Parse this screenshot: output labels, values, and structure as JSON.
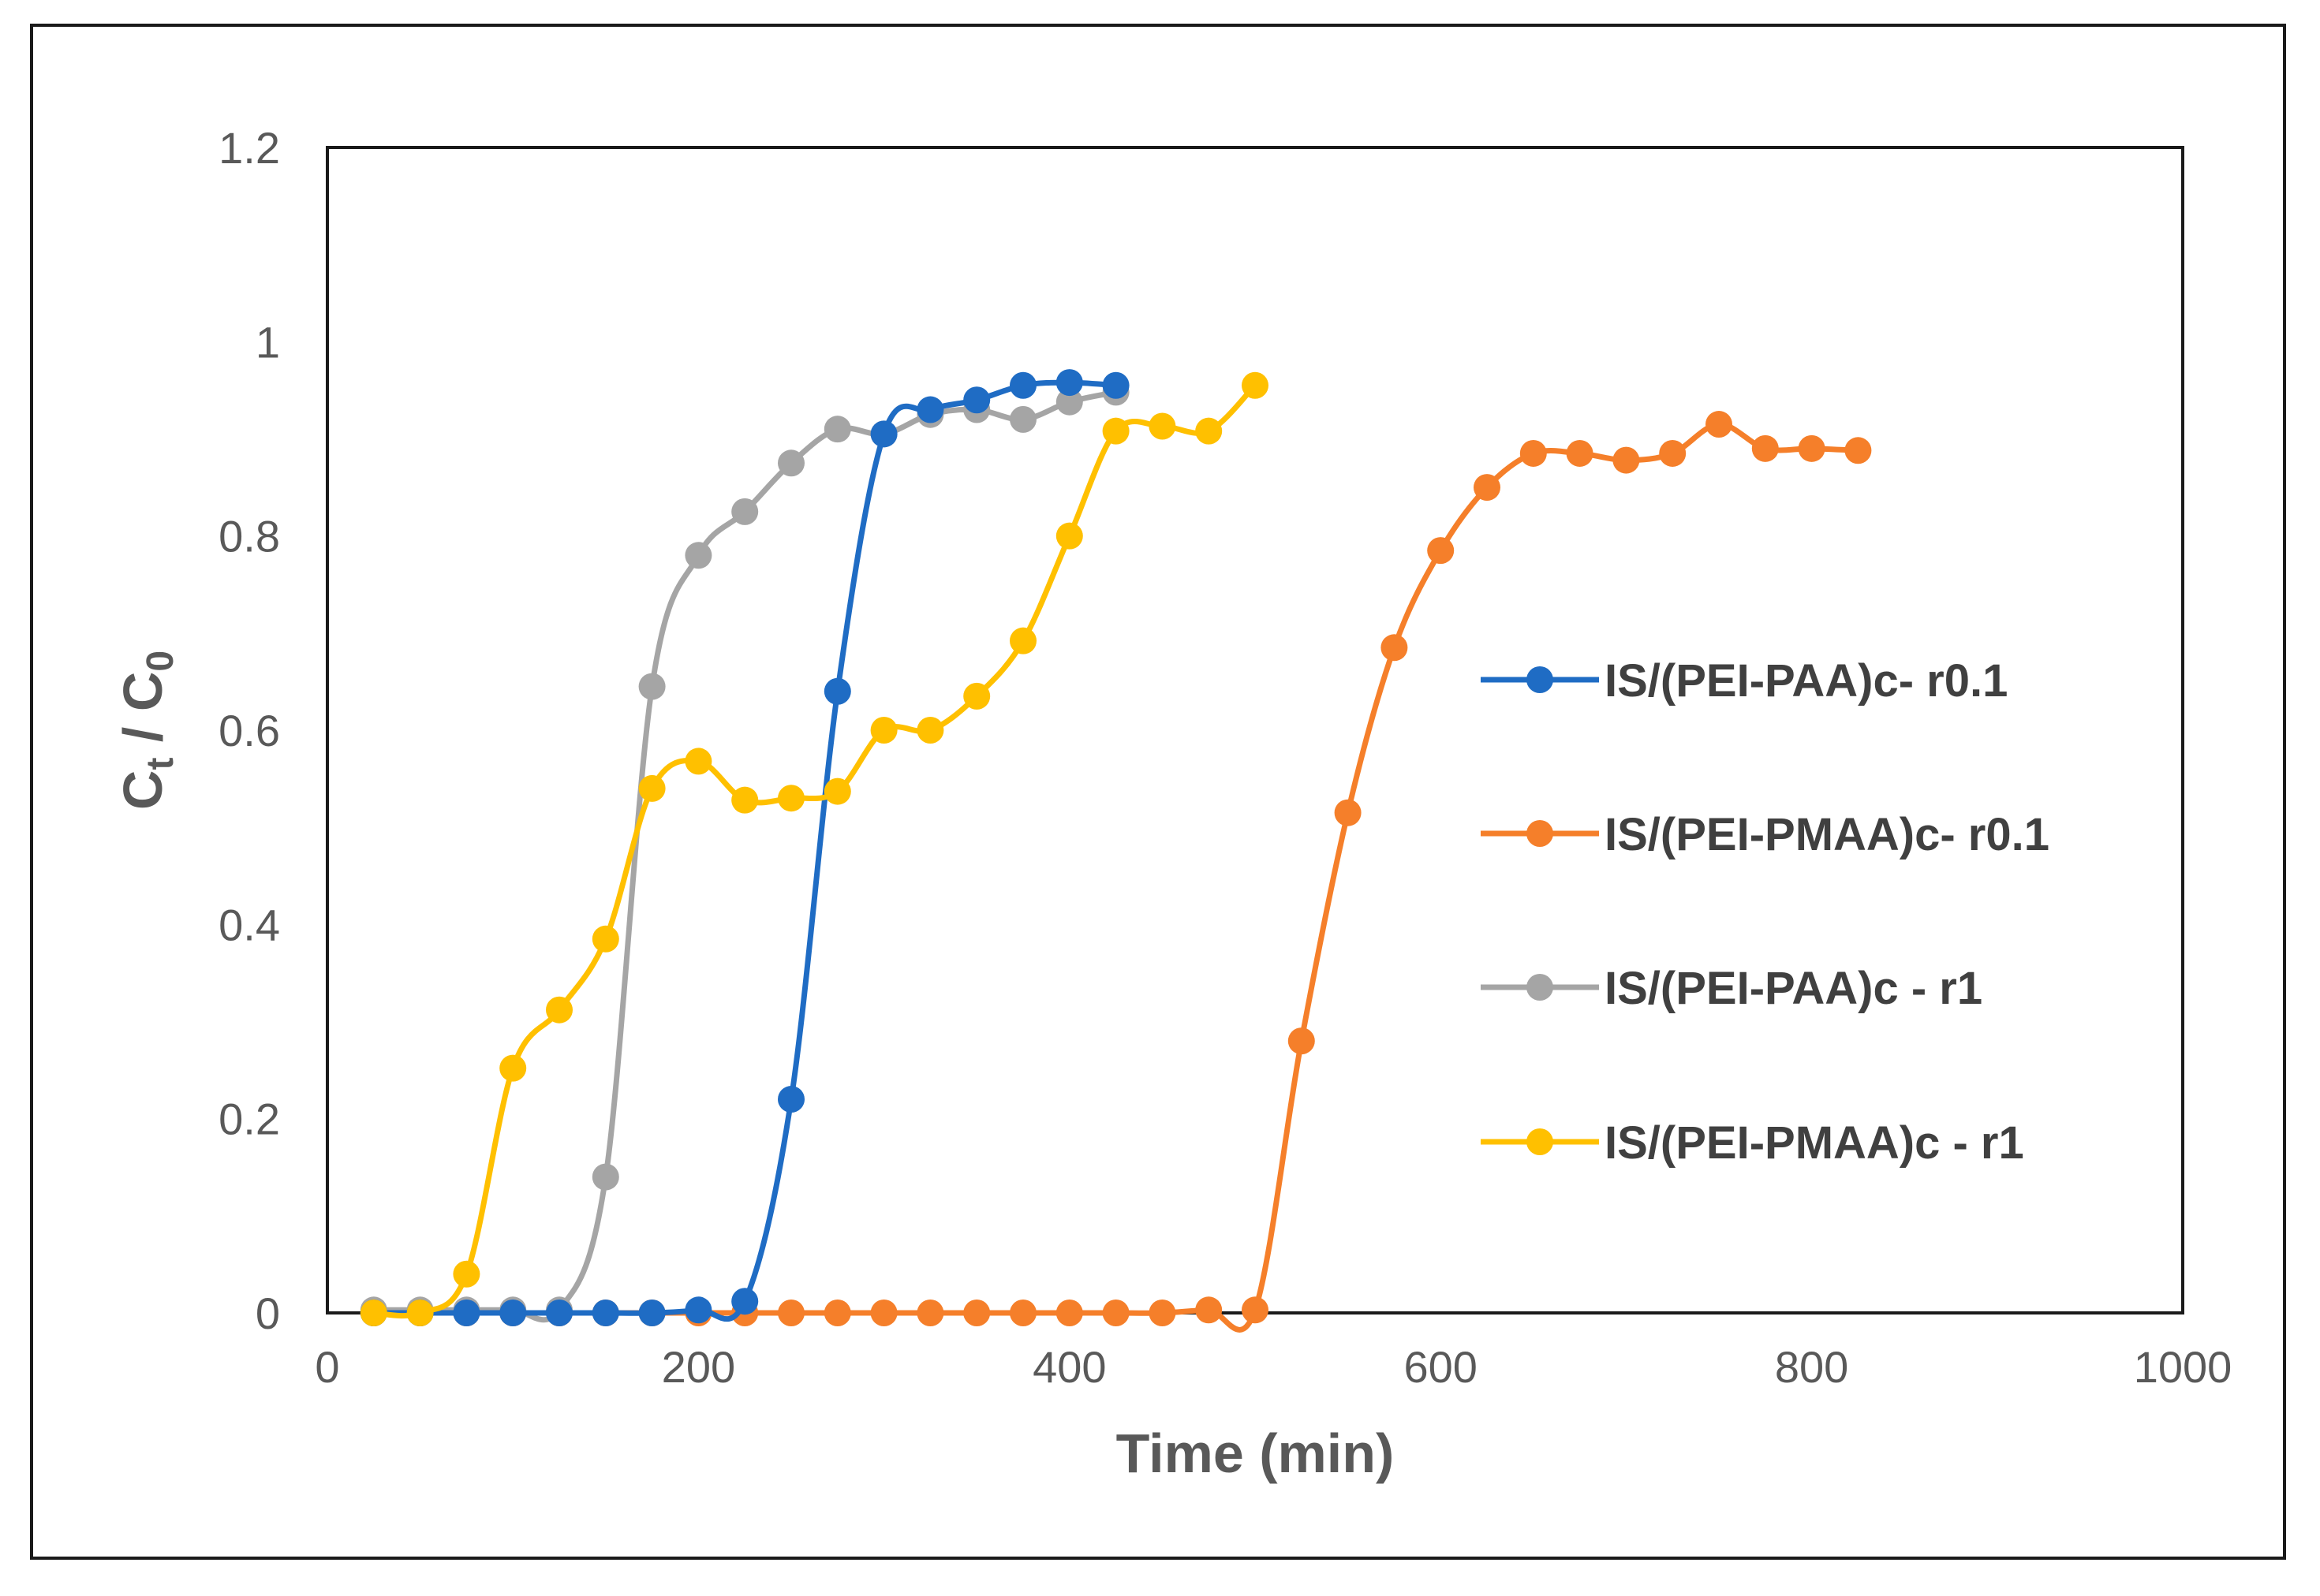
{
  "chart_data": {
    "type": "scatter",
    "title": "",
    "xlabel": "Time (min)",
    "ylabel_main": "C",
    "ylabel_sub_t": "t",
    "ylabel_slash": " / C",
    "ylabel_sub_0": "0",
    "xlim": [
      0,
      1000
    ],
    "ylim": [
      0,
      1.2
    ],
    "xticks": [
      0,
      200,
      400,
      600,
      800,
      1000
    ],
    "xtick_labels": [
      "0",
      "200",
      "400",
      "600",
      "800",
      "1000"
    ],
    "yticks": [
      0,
      0.2,
      0.4,
      0.6,
      0.8,
      1,
      1.2
    ],
    "ytick_labels": [
      "0",
      "0.2",
      "0.4",
      "0.6",
      "0.8",
      "1",
      "1.2"
    ],
    "grid": false,
    "legend_position": "right",
    "series": [
      {
        "name": "IS/(PEI-PAA)c- r0.1",
        "color": "#1f6cc4",
        "x": [
          25,
          50,
          75,
          100,
          125,
          150,
          175,
          200,
          225,
          250,
          275,
          300,
          325,
          350,
          375,
          400,
          425
        ],
        "y": [
          0,
          0,
          0,
          0,
          0,
          0,
          0,
          0.003,
          0.012,
          0.22,
          0.64,
          0.905,
          0.93,
          0.94,
          0.955,
          0.958,
          0.955
        ]
      },
      {
        "name": "IS/(PEI-PMAA)c- r0.1",
        "color": "#f57f2a",
        "x": [
          25,
          50,
          75,
          100,
          125,
          150,
          175,
          200,
          225,
          250,
          275,
          300,
          325,
          350,
          375,
          400,
          425,
          450,
          475,
          500,
          525,
          550,
          575,
          600,
          625,
          650,
          675,
          700,
          725,
          750,
          775,
          800,
          825
        ],
        "y": [
          0,
          0,
          0,
          0,
          0,
          0,
          0,
          0,
          0,
          0,
          0,
          0,
          0,
          0,
          0,
          0,
          0,
          0,
          0.003,
          0.003,
          0.28,
          0.515,
          0.685,
          0.785,
          0.85,
          0.885,
          0.885,
          0.878,
          0.885,
          0.915,
          0.89,
          0.89,
          0.888
        ]
      },
      {
        "name": "IS/(PEI-PAA)c - r1",
        "color": "#a5a5a5",
        "x": [
          25,
          50,
          75,
          100,
          125,
          150,
          175,
          200,
          225,
          250,
          275,
          300,
          325,
          350,
          375,
          400,
          425
        ],
        "y": [
          0.003,
          0.003,
          0.003,
          0.003,
          0.003,
          0.14,
          0.645,
          0.78,
          0.825,
          0.875,
          0.91,
          0.905,
          0.925,
          0.93,
          0.92,
          0.938,
          0.948
        ]
      },
      {
        "name": "IS/(PEI-PMAA)c - r1",
        "color": "#ffc000",
        "x": [
          25,
          50,
          75,
          100,
          125,
          150,
          175,
          200,
          225,
          250,
          275,
          300,
          325,
          350,
          375,
          400,
          425,
          450,
          475,
          500
        ],
        "y": [
          0,
          0,
          0.04,
          0.252,
          0.312,
          0.385,
          0.54,
          0.568,
          0.528,
          0.53,
          0.537,
          0.6,
          0.6,
          0.635,
          0.692,
          0.8,
          0.908,
          0.913,
          0.908,
          0.955
        ]
      }
    ]
  }
}
